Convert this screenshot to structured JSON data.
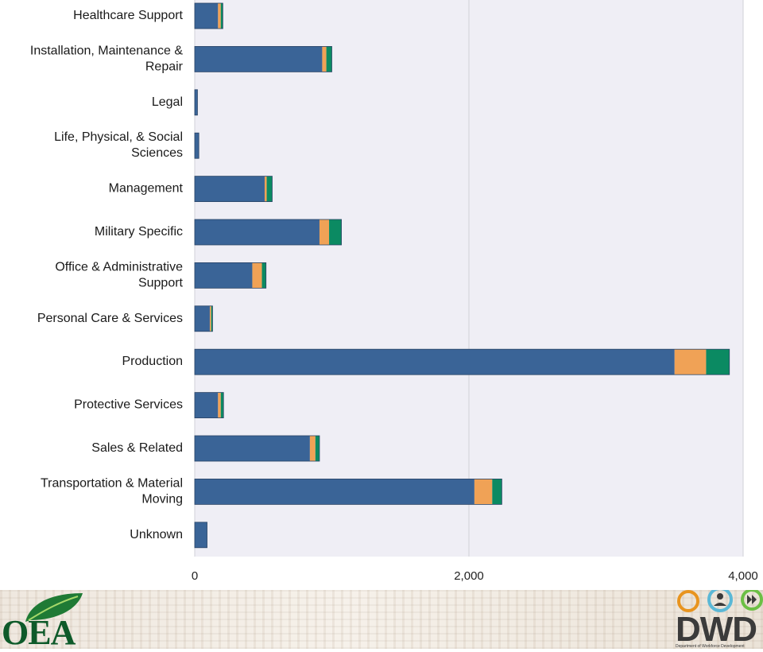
{
  "chart_data": {
    "type": "bar",
    "orientation": "horizontal",
    "stacked": true,
    "categories": [
      "Healthcare Support",
      "Installation, Maintenance & Repair",
      "Legal",
      "Life, Physical, & Social Sciences",
      "Management",
      "Military Specific",
      "Office & Administrative Support",
      "Personal Care & Services",
      "Production",
      "Protective Services",
      "Sales & Related",
      "Transportation & Material Moving",
      "Unknown"
    ],
    "series": [
      {
        "color": "#3a6497",
        "values": [
          170,
          930,
          20,
          30,
          510,
          910,
          420,
          110,
          3500,
          170,
          840,
          2040,
          90
        ]
      },
      {
        "color": "#f0a256",
        "values": [
          20,
          30,
          0,
          0,
          15,
          70,
          70,
          10,
          230,
          20,
          40,
          130,
          0
        ]
      },
      {
        "color": "#0b8a62",
        "values": [
          15,
          40,
          0,
          0,
          40,
          90,
          30,
          10,
          170,
          20,
          30,
          70,
          0
        ]
      }
    ],
    "xlim": [
      0,
      4000
    ],
    "xticks": [
      0,
      2000,
      4000
    ],
    "xtick_labels": [
      "0",
      "2,000",
      "4,000"
    ],
    "grid": true,
    "legend": "none",
    "plot_background": "#efeef5"
  },
  "footer": {
    "left_logo_text": "OEA",
    "right_logo_text": "DWD",
    "right_logo_subtitle": "Department of Workforce Development"
  }
}
